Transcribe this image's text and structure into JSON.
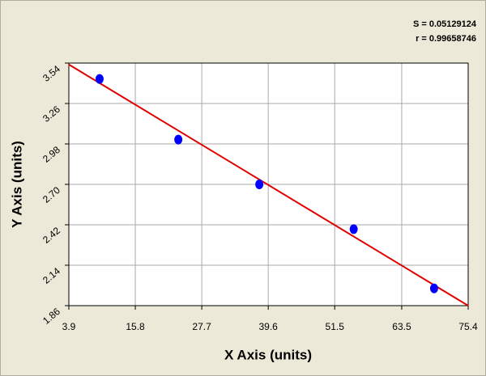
{
  "chart_data": {
    "type": "scatter",
    "xlabel": "X Axis (units)",
    "ylabel": "Y Axis (units)",
    "annotations": [
      "S = 0.05129124",
      "r = 0.99658746"
    ],
    "x": [
      9.4,
      23.5,
      38.0,
      54.9,
      69.3
    ],
    "values": [
      3.43,
      3.01,
      2.7,
      2.39,
      1.98
    ],
    "color": "#0000ff",
    "fit_line": {
      "x": [
        3.9,
        75.4
      ],
      "y": [
        3.53,
        1.86
      ],
      "color": "#e00000"
    },
    "xlim": [
      3.9,
      75.4
    ],
    "xticks": [
      3.9,
      15.8,
      27.7,
      39.6,
      51.5,
      63.5,
      75.4
    ],
    "ylim": [
      1.86,
      3.54
    ],
    "yticks": [
      1.86,
      2.14,
      2.42,
      {
        "value": 2.7,
        "label": "2.70"
      },
      2.98,
      3.26,
      3.54
    ],
    "grid": true
  }
}
